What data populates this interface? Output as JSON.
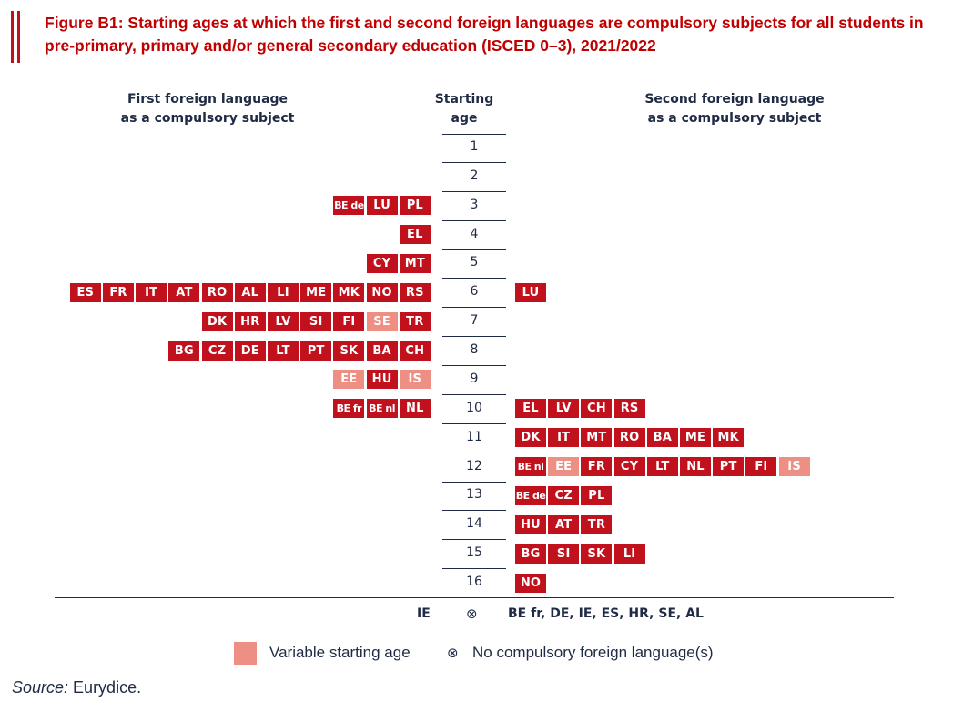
{
  "figure": {
    "title": "Figure B1: Starting ages at which the first and second foreign languages are compulsory subjects for all students in pre-primary, primary and/or general secondary education (ISCED 0–3), 2021/2022",
    "source_label": "Source:",
    "source_text": " Eurydice."
  },
  "colors": {
    "title": "#c00000",
    "fixed_age": "#c0111d",
    "variable_age": "#ee8f84",
    "text": "#1f2a44"
  },
  "chart_data": {
    "type": "table",
    "left_header": [
      "First foreign language",
      "as a compulsory subject"
    ],
    "center_header": [
      "Starting",
      "age"
    ],
    "right_header": [
      "Second foreign language",
      "as a compulsory subject"
    ],
    "ages": [
      "1",
      "2",
      "3",
      "4",
      "5",
      "6",
      "7",
      "8",
      "9",
      "10",
      "11",
      "12",
      "13",
      "14",
      "15",
      "16"
    ],
    "first_language": [
      {
        "age": "3",
        "countries": [
          {
            "code": "BE de",
            "variable": false
          },
          {
            "code": "LU",
            "variable": false
          },
          {
            "code": "PL",
            "variable": false
          }
        ]
      },
      {
        "age": "4",
        "countries": [
          {
            "code": "EL",
            "variable": false
          }
        ]
      },
      {
        "age": "5",
        "countries": [
          {
            "code": "CY",
            "variable": false
          },
          {
            "code": "MT",
            "variable": false
          }
        ]
      },
      {
        "age": "6",
        "countries": [
          {
            "code": "ES",
            "variable": false
          },
          {
            "code": "FR",
            "variable": false
          },
          {
            "code": "IT",
            "variable": false
          },
          {
            "code": "AT",
            "variable": false
          },
          {
            "code": "RO",
            "variable": false
          },
          {
            "code": "AL",
            "variable": false
          },
          {
            "code": "LI",
            "variable": false
          },
          {
            "code": "ME",
            "variable": false
          },
          {
            "code": "MK",
            "variable": false
          },
          {
            "code": "NO",
            "variable": false
          },
          {
            "code": "RS",
            "variable": false
          }
        ]
      },
      {
        "age": "7",
        "countries": [
          {
            "code": "DK",
            "variable": false
          },
          {
            "code": "HR",
            "variable": false
          },
          {
            "code": "LV",
            "variable": false
          },
          {
            "code": "SI",
            "variable": false
          },
          {
            "code": "FI",
            "variable": false
          },
          {
            "code": "SE",
            "variable": true
          },
          {
            "code": "TR",
            "variable": false
          }
        ]
      },
      {
        "age": "8",
        "countries": [
          {
            "code": "BG",
            "variable": false
          },
          {
            "code": "CZ",
            "variable": false
          },
          {
            "code": "DE",
            "variable": false
          },
          {
            "code": "LT",
            "variable": false
          },
          {
            "code": "PT",
            "variable": false
          },
          {
            "code": "SK",
            "variable": false
          },
          {
            "code": "BA",
            "variable": false
          },
          {
            "code": "CH",
            "variable": false
          }
        ]
      },
      {
        "age": "9",
        "countries": [
          {
            "code": "EE",
            "variable": true
          },
          {
            "code": "HU",
            "variable": false
          },
          {
            "code": "IS",
            "variable": true
          }
        ]
      },
      {
        "age": "10",
        "countries": [
          {
            "code": "BE fr",
            "variable": false
          },
          {
            "code": "BE nl",
            "variable": false
          },
          {
            "code": "NL",
            "variable": false
          }
        ]
      }
    ],
    "second_language": [
      {
        "age": "6",
        "countries": [
          {
            "code": "LU",
            "variable": false
          }
        ]
      },
      {
        "age": "10",
        "countries": [
          {
            "code": "EL",
            "variable": false
          },
          {
            "code": "LV",
            "variable": false
          },
          {
            "code": "CH",
            "variable": false
          },
          {
            "code": "RS",
            "variable": false
          }
        ]
      },
      {
        "age": "11",
        "countries": [
          {
            "code": "DK",
            "variable": false
          },
          {
            "code": "IT",
            "variable": false
          },
          {
            "code": "MT",
            "variable": false
          },
          {
            "code": "RO",
            "variable": false
          },
          {
            "code": "BA",
            "variable": false
          },
          {
            "code": "ME",
            "variable": false
          },
          {
            "code": "MK",
            "variable": false
          }
        ]
      },
      {
        "age": "12",
        "countries": [
          {
            "code": "BE nl",
            "variable": false
          },
          {
            "code": "EE",
            "variable": true
          },
          {
            "code": "FR",
            "variable": false
          },
          {
            "code": "CY",
            "variable": false
          },
          {
            "code": "LT",
            "variable": false
          },
          {
            "code": "NL",
            "variable": false
          },
          {
            "code": "PT",
            "variable": false
          },
          {
            "code": "FI",
            "variable": false
          },
          {
            "code": "IS",
            "variable": true
          }
        ]
      },
      {
        "age": "13",
        "countries": [
          {
            "code": "BE de",
            "variable": false
          },
          {
            "code": "CZ",
            "variable": false
          },
          {
            "code": "PL",
            "variable": false
          }
        ]
      },
      {
        "age": "14",
        "countries": [
          {
            "code": "HU",
            "variable": false
          },
          {
            "code": "AT",
            "variable": false
          },
          {
            "code": "TR",
            "variable": false
          }
        ]
      },
      {
        "age": "15",
        "countries": [
          {
            "code": "BG",
            "variable": false
          },
          {
            "code": "SI",
            "variable": false
          },
          {
            "code": "SK",
            "variable": false
          },
          {
            "code": "LI",
            "variable": false
          }
        ]
      },
      {
        "age": "16",
        "countries": [
          {
            "code": "NO",
            "variable": false
          }
        ]
      }
    ],
    "no_compulsory": {
      "symbol": "⊗",
      "first_language": "IE",
      "second_language": "BE fr, DE, IE, ES, HR, SE, AL"
    },
    "legend": [
      {
        "label": "Variable starting age",
        "kind": "swatch"
      },
      {
        "label": "No compulsory foreign language(s)",
        "kind": "symbol",
        "symbol": "⊗"
      }
    ]
  }
}
